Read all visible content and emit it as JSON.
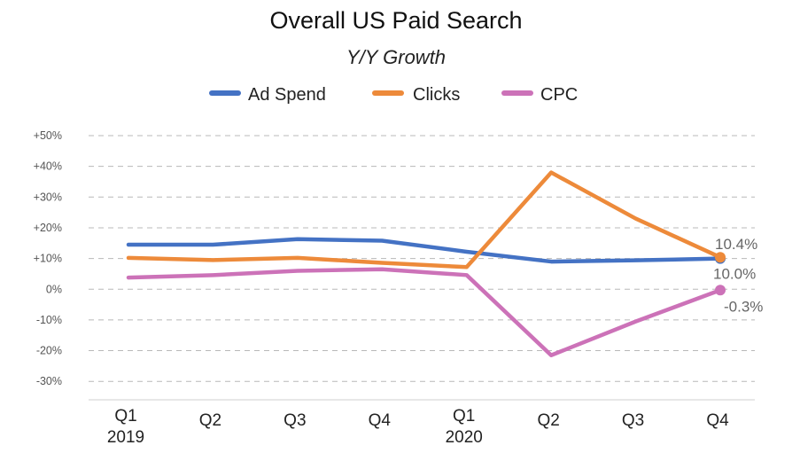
{
  "chart_data": {
    "type": "line",
    "title": "Overall US Paid Search",
    "subtitle": "Y/Y Growth",
    "categories": [
      "Q1\n2019",
      "Q2",
      "Q3",
      "Q4",
      "Q1\n2020",
      "Q2",
      "Q3",
      "Q4"
    ],
    "y_ticks": [
      {
        "value": 50,
        "label": "+50%"
      },
      {
        "value": 40,
        "label": "+40%"
      },
      {
        "value": 30,
        "label": "+30%"
      },
      {
        "value": 20,
        "label": "+20%"
      },
      {
        "value": 10,
        "label": "+10%"
      },
      {
        "value": 0,
        "label": "0%"
      },
      {
        "value": -10,
        "label": "-10%"
      },
      {
        "value": -20,
        "label": "-20%"
      },
      {
        "value": -30,
        "label": "-30%"
      }
    ],
    "ylim": [
      -36,
      50
    ],
    "grid": true,
    "legend_position": "top-center",
    "series": [
      {
        "name": "Ad Spend",
        "color": "#4472c4",
        "values": [
          14.5,
          14.5,
          16.3,
          15.8,
          12.2,
          9.0,
          9.4,
          10.0
        ],
        "end_label": "10.0%"
      },
      {
        "name": "Clicks",
        "color": "#ed8a3a",
        "values": [
          10.2,
          9.5,
          10.2,
          8.6,
          7.2,
          38.0,
          23.0,
          10.4
        ],
        "end_label": "10.4%"
      },
      {
        "name": "CPC",
        "color": "#cc72b8",
        "values": [
          3.8,
          4.6,
          6.0,
          6.5,
          4.6,
          -21.5,
          -10.5,
          -0.3
        ],
        "end_label": "-0.3%"
      }
    ]
  }
}
